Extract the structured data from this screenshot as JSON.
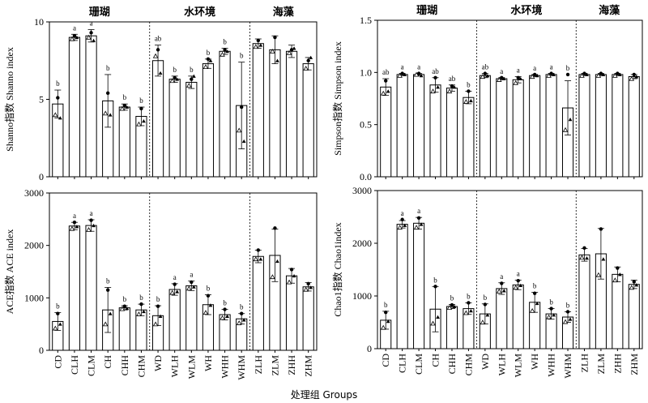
{
  "figure": {
    "xlabel": "处理组  Groups"
  },
  "chart_data": [
    {
      "type": "bar",
      "ylabel": "Shanno指数  Shanno index",
      "ylim": [
        0,
        10
      ],
      "yticks": [
        0,
        5,
        10
      ],
      "group_labels": [
        "珊瑚",
        "水环境",
        "海藻"
      ],
      "categories": [
        "CD",
        "CLH",
        "CLM",
        "CH",
        "CHH",
        "CHM",
        "WD",
        "WLH",
        "WLM",
        "WH",
        "WHH",
        "WHM",
        "ZLH",
        "ZLM",
        "ZHH",
        "ZHM"
      ],
      "values": [
        4.7,
        9.0,
        9.1,
        4.9,
        4.5,
        3.9,
        7.5,
        6.3,
        6.1,
        7.3,
        8.1,
        4.6,
        8.6,
        8.2,
        8.1,
        7.3
      ],
      "errors": [
        0.9,
        0.2,
        0.4,
        1.7,
        0.2,
        0.6,
        1.0,
        0.2,
        0.4,
        0.3,
        0.2,
        2.8,
        0.3,
        0.9,
        0.4,
        0.4
      ],
      "letters": [
        "b",
        "a",
        "a",
        "b",
        "b",
        "b",
        "ab",
        "b",
        "b",
        "b",
        "b",
        "b",
        "",
        "",
        "",
        ""
      ],
      "points": [
        [
          4.0,
          5.1,
          3.8
        ],
        [
          8.9,
          9.1,
          9.0
        ],
        [
          9.0,
          9.3,
          8.8
        ],
        [
          4.1,
          5.4,
          4.0
        ],
        [
          4.4,
          4.6,
          4.5
        ],
        [
          3.4,
          4.4,
          3.6
        ],
        [
          7.8,
          8.2,
          6.7
        ],
        [
          6.2,
          6.4,
          6.3
        ],
        [
          5.9,
          6.3,
          6.5
        ],
        [
          7.1,
          7.6,
          7.5
        ],
        [
          7.9,
          8.2,
          8.1
        ],
        [
          3.0,
          4.5,
          2.3
        ],
        [
          8.4,
          8.8,
          8.5
        ],
        [
          8.1,
          9.0,
          7.5
        ],
        [
          8.0,
          8.2,
          8.3
        ],
        [
          7.0,
          7.5,
          7.7
        ]
      ],
      "separators_after": [
        6,
        12
      ]
    },
    {
      "type": "bar",
      "ylabel": "Simpson指数  Simpson index",
      "ylim": [
        0,
        1.5
      ],
      "yticks": [
        0,
        0.5,
        1.0,
        1.5
      ],
      "group_labels": [
        "珊瑚",
        "水环境",
        "海藻"
      ],
      "categories": [
        "CD",
        "CLH",
        "CLM",
        "CH",
        "CHH",
        "CHM",
        "WD",
        "WLH",
        "WLM",
        "WH",
        "WHH",
        "WHM",
        "ZLH",
        "ZLM",
        "ZHH",
        "ZHM"
      ],
      "values": [
        0.86,
        0.98,
        0.98,
        0.88,
        0.85,
        0.76,
        0.97,
        0.94,
        0.93,
        0.97,
        0.98,
        0.66,
        0.98,
        0.98,
        0.98,
        0.96
      ],
      "errors": [
        0.08,
        0.01,
        0.01,
        0.07,
        0.03,
        0.06,
        0.02,
        0.01,
        0.03,
        0.01,
        0.01,
        0.26,
        0.01,
        0.01,
        0.01,
        0.02
      ],
      "letters": [
        "ab",
        "a",
        "a",
        "ab",
        "ab",
        "b",
        "ab",
        "a",
        "a",
        "a",
        "a",
        "b",
        "",
        "",
        "",
        ""
      ],
      "points": [
        [
          0.8,
          0.92,
          0.82
        ],
        [
          0.97,
          0.99,
          0.98
        ],
        [
          0.98,
          0.99,
          0.97
        ],
        [
          0.82,
          0.95,
          0.86
        ],
        [
          0.82,
          0.87,
          0.86
        ],
        [
          0.72,
          0.82,
          0.73
        ],
        [
          0.96,
          0.99,
          0.97
        ],
        [
          0.93,
          0.95,
          0.94
        ],
        [
          0.9,
          0.95,
          0.94
        ],
        [
          0.96,
          0.98,
          0.97
        ],
        [
          0.97,
          0.99,
          0.98
        ],
        [
          0.45,
          0.98,
          0.55
        ],
        [
          0.97,
          0.99,
          0.98
        ],
        [
          0.97,
          0.99,
          0.98
        ],
        [
          0.97,
          0.99,
          0.98
        ],
        [
          0.94,
          0.98,
          0.96
        ]
      ],
      "separators_after": [
        6,
        12
      ]
    },
    {
      "type": "bar",
      "ylabel": "ACE指数  ACE index",
      "ylim": [
        0,
        3000
      ],
      "yticks": [
        0,
        1000,
        2000,
        3000
      ],
      "group_labels": [],
      "categories": [
        "CD",
        "CLH",
        "CLM",
        "CH",
        "CHH",
        "CHM",
        "WD",
        "WLH",
        "WLM",
        "WH",
        "WHH",
        "WHM",
        "ZLH",
        "ZLM",
        "ZHH",
        "ZHM"
      ],
      "values": [
        550,
        2370,
        2380,
        770,
        810,
        770,
        660,
        1160,
        1230,
        870,
        680,
        600,
        1790,
        1810,
        1420,
        1210
      ],
      "errors": [
        170,
        70,
        110,
        430,
        40,
        110,
        190,
        110,
        90,
        190,
        100,
        100,
        120,
        500,
        140,
        80
      ],
      "letters": [
        "b",
        "a",
        "a",
        "b",
        "b",
        "b",
        "b",
        "a",
        "a",
        "b",
        "b",
        "b",
        "",
        "",
        "",
        ""
      ],
      "points": [
        [
          420,
          700,
          500
        ],
        [
          2320,
          2440,
          2360
        ],
        [
          2300,
          2480,
          2380
        ],
        [
          500,
          1150,
          700
        ],
        [
          790,
          840,
          800
        ],
        [
          690,
          880,
          740
        ],
        [
          500,
          840,
          650
        ],
        [
          1100,
          1260,
          1120
        ],
        [
          1180,
          1300,
          1210
        ],
        [
          720,
          1040,
          860
        ],
        [
          620,
          780,
          650
        ],
        [
          520,
          700,
          580
        ],
        [
          1740,
          1910,
          1740
        ],
        [
          1400,
          2330,
          1700
        ],
        [
          1300,
          1540,
          1420
        ],
        [
          1160,
          1270,
          1200
        ]
      ],
      "separators_after": [
        6,
        12
      ]
    },
    {
      "type": "bar",
      "ylabel": "Chao1指数  Chao1index",
      "ylim": [
        0,
        3000
      ],
      "yticks": [
        0,
        1000,
        2000,
        3000
      ],
      "group_labels": [],
      "categories": [
        "CD",
        "CLH",
        "CLM",
        "CH",
        "CHH",
        "CHM",
        "WD",
        "WLH",
        "WLM",
        "WH",
        "WHH",
        "WHM",
        "ZLH",
        "ZLM",
        "ZHH",
        "ZHM"
      ],
      "values": [
        540,
        2360,
        2380,
        750,
        800,
        760,
        660,
        1140,
        1210,
        880,
        660,
        600,
        1780,
        1800,
        1410,
        1220
      ],
      "errors": [
        170,
        70,
        110,
        430,
        40,
        110,
        190,
        110,
        90,
        190,
        100,
        100,
        120,
        480,
        140,
        80
      ],
      "letters": [
        "b",
        "a",
        "a",
        "b",
        "b",
        "b",
        "b",
        "a",
        "a",
        "b",
        "b",
        "b",
        "",
        "",
        "",
        ""
      ],
      "points": [
        [
          400,
          690,
          520
        ],
        [
          2300,
          2450,
          2340
        ],
        [
          2300,
          2480,
          2360
        ],
        [
          480,
          1180,
          600
        ],
        [
          780,
          830,
          800
        ],
        [
          680,
          870,
          720
        ],
        [
          500,
          840,
          640
        ],
        [
          1090,
          1240,
          1100
        ],
        [
          1160,
          1290,
          1200
        ],
        [
          720,
          1050,
          860
        ],
        [
          600,
          760,
          640
        ],
        [
          510,
          700,
          560
        ],
        [
          1730,
          1910,
          1720
        ],
        [
          1400,
          2270,
          1700
        ],
        [
          1300,
          1530,
          1410
        ],
        [
          1160,
          1270,
          1210
        ]
      ],
      "separators_after": [
        6,
        12
      ]
    }
  ]
}
